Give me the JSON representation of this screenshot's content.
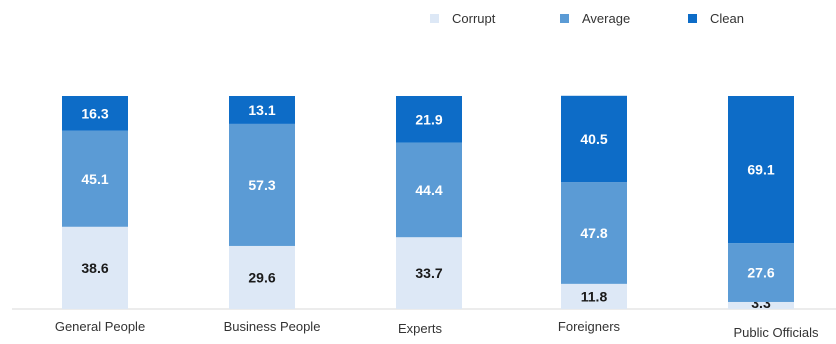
{
  "chart_data": {
    "type": "bar",
    "stacked": true,
    "percent": true,
    "categories": [
      "General People",
      "Business People",
      "Experts",
      "Foreigners",
      "Public Officials"
    ],
    "series": [
      {
        "name": "Corrupt",
        "values": [
          38.6,
          29.6,
          33.7,
          11.8,
          3.3
        ],
        "color": "#dde8f6"
      },
      {
        "name": "Average",
        "values": [
          45.1,
          57.3,
          44.4,
          47.8,
          27.6
        ],
        "color": "#5b9bd5"
      },
      {
        "name": "Clean",
        "values": [
          16.3,
          13.1,
          21.9,
          40.5,
          69.1
        ],
        "color": "#0d6cc7"
      }
    ],
    "ylim": [
      0,
      100
    ],
    "legend_position": "top-right",
    "grid": false
  }
}
